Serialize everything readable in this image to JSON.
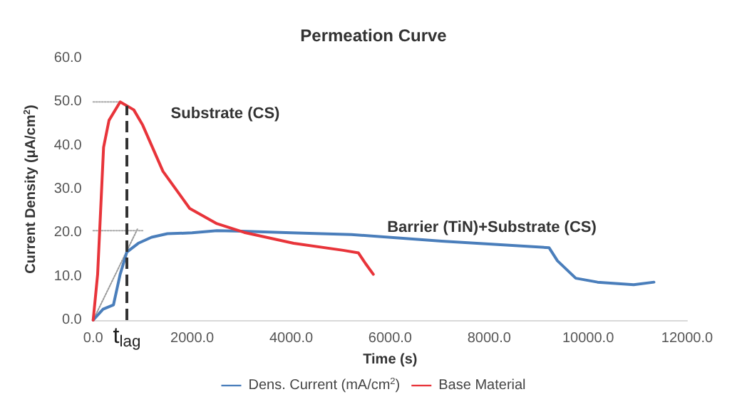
{
  "chart_data": {
    "type": "line",
    "title": "Permeation Curve",
    "xlabel": "Time (s)",
    "ylabel": "Current Density (μA/cm$^{2}$)",
    "xlim": [
      0,
      12000
    ],
    "xticks": [
      {
        "value": 0,
        "label": "0.0"
      },
      {
        "value": 2000,
        "label": "2000.0"
      },
      {
        "value": 4000,
        "label": "4000.0"
      },
      {
        "value": 6000,
        "label": "6000.0"
      },
      {
        "value": 8000,
        "label": "8000.0"
      },
      {
        "value": 10000,
        "label": "10000.0"
      },
      {
        "value": 12000,
        "label": "12000.0"
      }
    ],
    "ylim": [
      0,
      60
    ],
    "yticks": [
      {
        "value": 0,
        "label": "0.0"
      },
      {
        "value": 10,
        "label": "10.0"
      },
      {
        "value": 20,
        "label": "20.0"
      },
      {
        "value": 30,
        "label": "30.0"
      },
      {
        "value": 40,
        "label": "40.0"
      },
      {
        "value": 50,
        "label": "50.0"
      },
      {
        "value": 60,
        "label": "60.0"
      }
    ],
    "grid": false,
    "legend": "bottom",
    "marker": "none",
    "line_style": "solid",
    "series": [
      {
        "name": "Dens. Current (mA/cm$^{2}$)",
        "color": "#4a7ebb",
        "x": [
          0,
          200,
          410,
          545,
          680,
          910,
          1180,
          1500,
          2000,
          2500,
          3000,
          4000,
          5220,
          7040,
          9210,
          9380,
          9750,
          10190,
          10920,
          11330
        ],
        "values": [
          0,
          2.5,
          3.5,
          10.5,
          15.6,
          17.6,
          19,
          19.8,
          20,
          20.5,
          20.4,
          20,
          19.6,
          18.1,
          16.6,
          13.6,
          9.6,
          8.7,
          8.1,
          8.7
        ]
      },
      {
        "name": "Base Material",
        "color": "#e8343a",
        "x": [
          0,
          90,
          150,
          210,
          320,
          545,
          820,
          1000,
          1410,
          1950,
          2500,
          3050,
          4050,
          5050,
          5360,
          5500,
          5660
        ],
        "values": [
          0,
          10.5,
          25,
          39.6,
          45.8,
          50,
          48.2,
          44.7,
          34.1,
          25.6,
          22.1,
          20.1,
          17.6,
          16,
          15.4,
          13,
          10.5
        ]
      },
      {
        "type": "line",
        "color": "#999999",
        "line_style": "dotted",
        "x": [
          0,
          900
        ],
        "values": [
          0,
          21
        ]
      },
      {
        "type": "line",
        "color": "#aaaaaa",
        "line_style": "dotted",
        "x": [
          0,
          545
        ],
        "values": [
          50,
          50
        ]
      },
      {
        "type": "line",
        "color": "#aaaaaa",
        "line_style": "dotted",
        "x": [
          0,
          1000
        ],
        "values": [
          20.5,
          20.5
        ]
      }
    ],
    "ref_lines": [
      {
        "axis": "x",
        "value": 680,
        "label": "t$_{lag}$",
        "color": "#333333",
        "line_style": "dashed"
      }
    ],
    "annotations": [
      "Substrate (CS)",
      "Barrier (TiN)+Substrate (CS)"
    ]
  }
}
